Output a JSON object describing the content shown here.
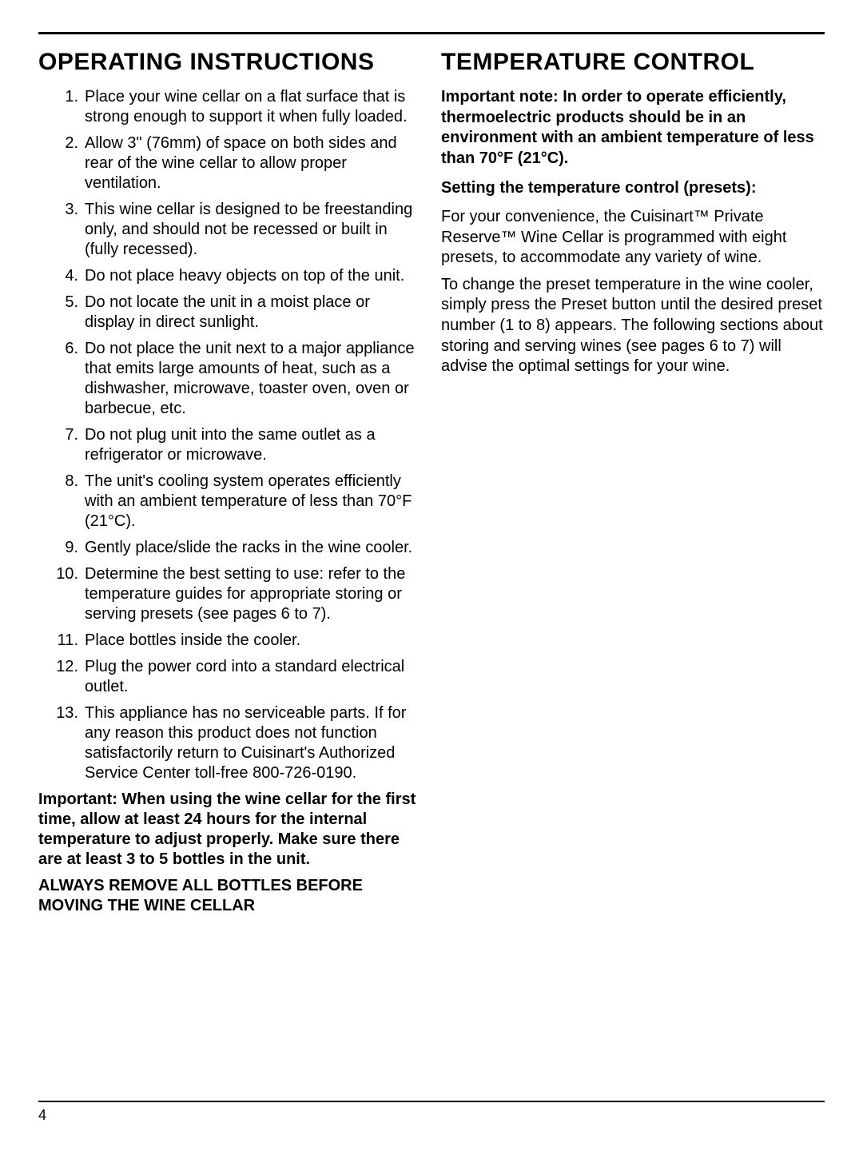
{
  "page_number": "4",
  "left": {
    "title": "OPERATING INSTRUCTIONS",
    "items": [
      "Place your wine cellar on a flat surface that is strong enough to support it when fully loaded.",
      "Allow 3\" (76mm) of space on both sides and rear of the wine cellar to allow proper ventilation.",
      "This wine cellar is designed to be freestanding only, and should not be recessed or built in (fully recessed).",
      "Do not place heavy objects on top of the unit.",
      "Do not locate the unit in a moist place or display in direct sunlight.",
      "Do not place the unit next to a major appliance that emits large amounts of heat, such as a dishwasher, microwave, toaster oven, oven or barbecue, etc.",
      "Do not plug unit into the same outlet as a refrigerator or microwave.",
      "The unit's cooling system operates efficiently with an ambient temperature of less than 70°F (21°C).",
      "Gently place/slide the racks in the wine cooler.",
      "Determine the best setting to use: refer to the temperature guides for appropriate storing or serving presets (see pages 6 to 7).",
      "Place bottles inside the cooler.",
      "Plug the power cord into a standard electrical outlet.",
      "This appliance has no serviceable parts. If for any reason this product does not function satisfactorily return to Cuisinart's Authorized Service Center toll-free 800-726-0190."
    ],
    "important": "Important: When using the wine cellar for the first time, allow at least 24 hours for the internal temperature to adjust properly. Make sure there are at least 3 to 5 bottles in the unit.",
    "caps_warning": "ALWAYS REMOVE ALL BOTTLES BEFORE MOVING THE WINE CELLAR"
  },
  "right": {
    "title": "TEMPERATURE CONTROL",
    "important_note": "Important note: In order to operate efficiently, thermoelectric products should be in an environment with an ambient temperature of less than 70°F (21°C).",
    "sub_heading": "Setting the temperature control (presets):",
    "para1": "For your convenience, the Cuisinart™ Private Reserve™ Wine Cellar is programmed with eight presets, to accommodate any variety of wine.",
    "para2": "To change the preset temperature in the wine cooler, simply press the Preset button until the desired preset number (1 to 8) appears. The following sections about storing and serving wines (see pages 6 to 7) will advise the optimal settings for your wine."
  }
}
